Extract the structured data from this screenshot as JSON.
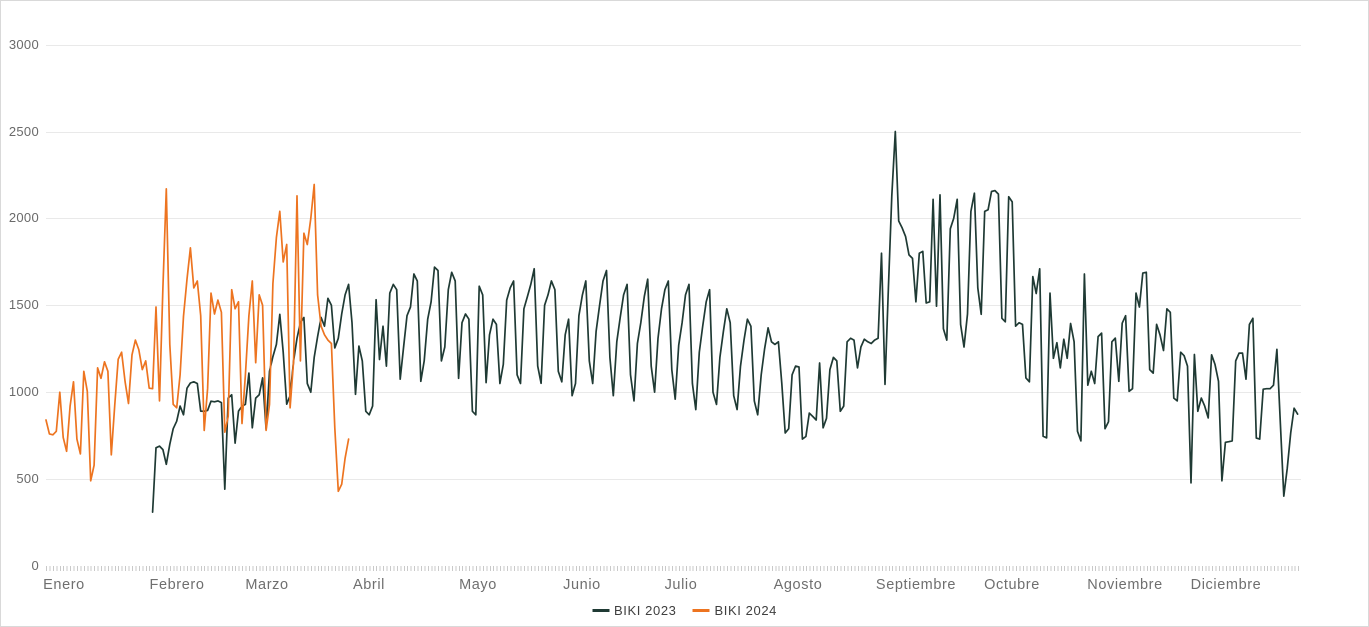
{
  "chart": {
    "y_axis": {
      "ticks": [
        "3000",
        "2500",
        "2000",
        "1500",
        "1000",
        "500",
        "0"
      ]
    },
    "x_axis": {
      "months": [
        "Enero",
        "Febrero",
        "Marzo",
        "Abril",
        "Mayo",
        "Junio",
        "Julio",
        "Agosto",
        "Septiembre",
        "Octubre",
        "Noviembre",
        "Diciembre"
      ]
    },
    "legend": [
      {
        "label": "BIKI  2023",
        "color": "#1f3a34"
      },
      {
        "label": "BIKI  2024",
        "color": "#ed7420"
      }
    ]
  },
  "chart_data": {
    "type": "line",
    "title": "",
    "xlabel": "",
    "ylabel": "",
    "ylim": [
      0,
      3000
    ],
    "y_gridlines": [
      500,
      1000,
      1500,
      2000,
      2500,
      3000
    ],
    "grid": "horizontal",
    "x_unit": "day (daily values, Enero-Diciembre)",
    "x_tick_style": "daily minor ticks",
    "legend_position": "bottom-center",
    "categories_months": [
      "Enero",
      "Febrero",
      "Marzo",
      "Abril",
      "Mayo",
      "Junio",
      "Julio",
      "Agosto",
      "Septiembre",
      "Octubre",
      "Noviembre",
      "Diciembre"
    ],
    "series": [
      {
        "name": "BIKI 2023",
        "color": "#1f3a34",
        "start_day_of_year": 32,
        "note": "daily counts Feb 1 - Dec 31 2023, values estimated from gridlines",
        "values": [
          310,
          680,
          690,
          670,
          585,
          700,
          790,
          833,
          920,
          870,
          1023,
          1053,
          1060,
          1050,
          891,
          890,
          895,
          948,
          945,
          950,
          940,
          442,
          966,
          985,
          707,
          891,
          920,
          930,
          1110,
          795,
          966,
          985,
          1082,
          787,
          1120,
          1205,
          1275,
          1448,
          1230,
          931,
          980,
          1180,
          1310,
          1400,
          1430,
          1050,
          1000,
          1200,
          1320,
          1430,
          1380,
          1540,
          1500,
          1255,
          1310,
          1450,
          1560,
          1620,
          1400,
          988,
          1265,
          1180,
          890,
          870,
          920,
          1532,
          1188,
          1380,
          1150,
          1570,
          1620,
          1590,
          1075,
          1260,
          1440,
          1490,
          1680,
          1640,
          1063,
          1180,
          1420,
          1520,
          1720,
          1700,
          1180,
          1260,
          1590,
          1690,
          1640,
          1080,
          1400,
          1450,
          1420,
          890,
          870,
          1610,
          1560,
          1055,
          1330,
          1420,
          1390,
          1050,
          1160,
          1530,
          1600,
          1640,
          1100,
          1050,
          1480,
          1550,
          1620,
          1710,
          1150,
          1051,
          1500,
          1560,
          1640,
          1590,
          1120,
          1060,
          1330,
          1420,
          980,
          1050,
          1440,
          1560,
          1640,
          1180,
          1050,
          1350,
          1500,
          1640,
          1700,
          1200,
          980,
          1290,
          1430,
          1560,
          1620,
          1100,
          950,
          1280,
          1400,
          1550,
          1650,
          1150,
          1000,
          1310,
          1480,
          1590,
          1640,
          1130,
          960,
          1270,
          1400,
          1560,
          1620,
          1050,
          900,
          1230,
          1380,
          1520,
          1590,
          1000,
          930,
          1200,
          1350,
          1480,
          1400,
          980,
          900,
          1150,
          1300,
          1420,
          1380,
          950,
          870,
          1100,
          1250,
          1370,
          1290,
          1275,
          1290,
          1050,
          765,
          790,
          1100,
          1150,
          1145,
          730,
          745,
          880,
          860,
          840,
          1168,
          795,
          850,
          1130,
          1200,
          1180,
          890,
          920,
          1290,
          1310,
          1300,
          1140,
          1260,
          1305,
          1290,
          1280,
          1300,
          1310,
          1800,
          1045,
          1600,
          2130,
          2500,
          1985,
          1945,
          1895,
          1790,
          1770,
          1520,
          1800,
          1810,
          1513,
          1520,
          2110,
          1495,
          2135,
          1365,
          1300,
          1940,
          2000,
          2110,
          1390,
          1260,
          1450,
          2040,
          2145,
          1600,
          1448,
          2040,
          2050,
          2155,
          2160,
          2140,
          1425,
          1405,
          2125,
          2095,
          1380,
          1400,
          1390,
          1082,
          1060,
          1665,
          1568,
          1710,
          747,
          737,
          1570,
          1195,
          1285,
          1140,
          1305,
          1195,
          1395,
          1290,
          775,
          720,
          1680,
          1040,
          1120,
          1050,
          1320,
          1340,
          790,
          830,
          1290,
          1311,
          1063,
          1397,
          1440,
          1005,
          1020,
          1570,
          1490,
          1685,
          1690,
          1130,
          1110,
          1390,
          1330,
          1240,
          1480,
          1460,
          966,
          950,
          1230,
          1210,
          1150,
          478,
          1217,
          890,
          966,
          920,
          852,
          1215,
          1160,
          1063,
          490,
          712,
          715,
          720,
          1180,
          1225,
          1225,
          1075,
          1390,
          1425,
          736,
          730,
          1017,
          1020,
          1020,
          1040,
          1247,
          816,
          402,
          560,
          765,
          908,
          874
        ]
      },
      {
        "name": "BIKI 2024",
        "color": "#ed7420",
        "start_day_of_year": 1,
        "note": "daily counts Jan 1 - Mar 29 2024, values estimated from gridlines",
        "values": [
          840,
          760,
          755,
          775,
          1000,
          740,
          660,
          920,
          1060,
          730,
          645,
          1120,
          1005,
          490,
          580,
          1140,
          1080,
          1175,
          1120,
          640,
          930,
          1190,
          1230,
          1060,
          935,
          1215,
          1300,
          1245,
          1130,
          1180,
          1023,
          1020,
          1490,
          950,
          1600,
          2170,
          1275,
          930,
          910,
          1100,
          1437,
          1650,
          1830,
          1600,
          1640,
          1440,
          780,
          1020,
          1570,
          1450,
          1530,
          1460,
          770,
          860,
          1590,
          1480,
          1520,
          820,
          1100,
          1440,
          1640,
          1170,
          1560,
          1500,
          780,
          930,
          1625,
          1890,
          2040,
          1750,
          1850,
          910,
          1180,
          2130,
          1180,
          1915,
          1850,
          2000,
          2195,
          1560,
          1380,
          1330,
          1300,
          1280,
          795,
          430,
          470,
          620,
          730
        ]
      }
    ]
  }
}
